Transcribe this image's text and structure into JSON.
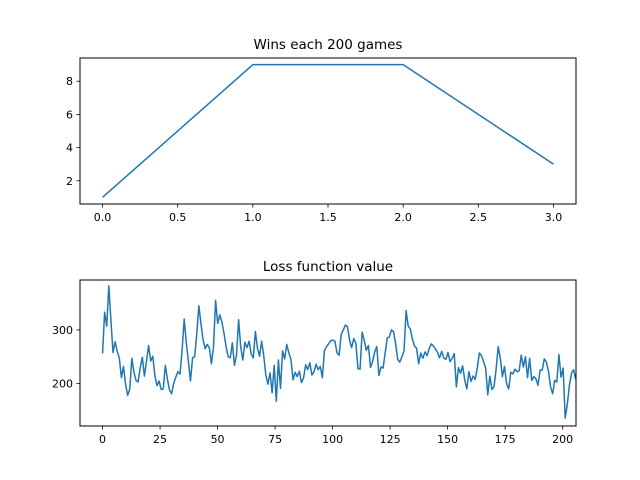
{
  "chart_data": [
    {
      "type": "line",
      "title": "Wins each 200 games",
      "xlabel": "",
      "ylabel": "",
      "xlim": [
        -0.15,
        3.15
      ],
      "ylim": [
        0.6,
        9.4
      ],
      "xticks": [
        0.0,
        0.5,
        1.0,
        1.5,
        2.0,
        2.5,
        3.0
      ],
      "xtick_labels": [
        "0.0",
        "0.5",
        "1.0",
        "1.5",
        "2.0",
        "2.5",
        "3.0"
      ],
      "yticks": [
        2,
        4,
        6,
        8
      ],
      "ytick_labels": [
        "2",
        "4",
        "6",
        "8"
      ],
      "grid": false,
      "series": [
        {
          "color": "#1f77b4",
          "x": [
            0,
            1,
            2,
            3
          ],
          "y": [
            1,
            9,
            9,
            3
          ]
        }
      ]
    },
    {
      "type": "line",
      "title": "Loss function value",
      "xlabel": "",
      "ylabel": "",
      "xlim": [
        -9.8,
        205.8
      ],
      "ylim": [
        121,
        393
      ],
      "xticks": [
        0,
        25,
        50,
        75,
        100,
        125,
        150,
        175,
        200
      ],
      "xtick_labels": [
        "0",
        "25",
        "50",
        "75",
        "100",
        "125",
        "150",
        "175",
        "200"
      ],
      "yticks": [
        200,
        300
      ],
      "ytick_labels": [
        "200",
        "300"
      ],
      "grid": false,
      "series": [
        {
          "color": "#1f77b4",
          "y": [
            256,
            333,
            307,
            382,
            318,
            258,
            278,
            260,
            248,
            211,
            232,
            199,
            178,
            190,
            247,
            221,
            206,
            203,
            230,
            249,
            214,
            242,
            271,
            242,
            251,
            215,
            196,
            205,
            189,
            190,
            234,
            208,
            188,
            181,
            201,
            212,
            222,
            218,
            262,
            320,
            276,
            242,
            205,
            248,
            250,
            292,
            345,
            312,
            282,
            265,
            273,
            267,
            237,
            268,
            355,
            312,
            328,
            315,
            294,
            269,
            250,
            248,
            276,
            234,
            254,
            319,
            268,
            244,
            277,
            267,
            279,
            255,
            248,
            297,
            266,
            251,
            279,
            252,
            216,
            199,
            220,
            183,
            234,
            167,
            244,
            191,
            261,
            246,
            273,
            257,
            245,
            207,
            221,
            213,
            223,
            202,
            210,
            235,
            226,
            239,
            216,
            222,
            236,
            226,
            232,
            211,
            262,
            269,
            274,
            280,
            281,
            279,
            257,
            253,
            292,
            300,
            309,
            306,
            281,
            267,
            284,
            275,
            228,
            227,
            296,
            281,
            262,
            271,
            230,
            241,
            259,
            269,
            215,
            231,
            229,
            257,
            285,
            287,
            300,
            297,
            274,
            245,
            240,
            250,
            260,
            336,
            307,
            302,
            283,
            270,
            266,
            237,
            257,
            247,
            259,
            252,
            265,
            274,
            270,
            265,
            258,
            248,
            260,
            248,
            245,
            258,
            241,
            247,
            256,
            194,
            230,
            219,
            233,
            207,
            190,
            222,
            204,
            214,
            208,
            229,
            257,
            252,
            241,
            229,
            179,
            214,
            189,
            194,
            227,
            269,
            247,
            213,
            232,
            200,
            190,
            221,
            218,
            227,
            222,
            224,
            253,
            231,
            250,
            211,
            247,
            206,
            213,
            209,
            197,
            225,
            225,
            246,
            240,
            223,
            194,
            181,
            206,
            203,
            254,
            212,
            229,
            136,
            161,
            197,
            219,
            226,
            208
          ],
          "x_start": 0,
          "x_step": 0.91
        }
      ]
    }
  ]
}
